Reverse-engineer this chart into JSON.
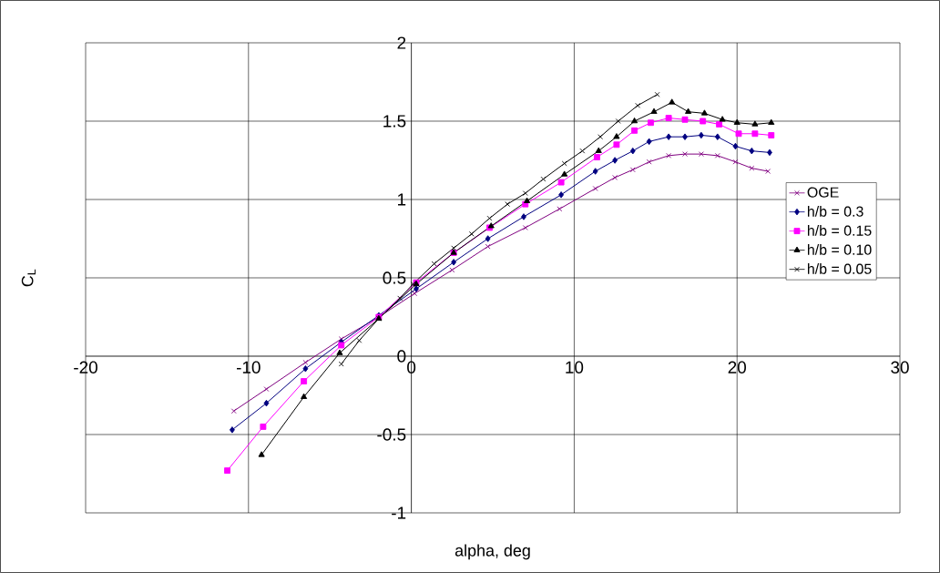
{
  "chart_data": {
    "type": "line",
    "xlabel": "alpha, deg",
    "ylabel": "C$_{L}$",
    "xlim": [
      -20,
      30
    ],
    "ylim": [
      -1,
      2
    ],
    "xticks": [
      -20,
      -10,
      0,
      10,
      20,
      30
    ],
    "yticks": [
      -1,
      -0.5,
      0,
      0.5,
      1,
      1.5,
      2
    ],
    "grid": true,
    "legend": "right",
    "line_style": "solid",
    "series": [
      {
        "name": "OGE",
        "color": "#800080",
        "marker": "cross",
        "x": [
          -10.9,
          -8.9,
          -6.5,
          -4.3,
          -2.0,
          0.2,
          2.5,
          4.7,
          7.0,
          9.1,
          11.3,
          12.5,
          13.6,
          14.6,
          15.8,
          16.8,
          17.8,
          18.8,
          19.9,
          20.9,
          21.9
        ],
        "values": [
          -0.35,
          -0.21,
          -0.04,
          0.11,
          0.25,
          0.4,
          0.55,
          0.7,
          0.82,
          0.94,
          1.07,
          1.14,
          1.19,
          1.24,
          1.28,
          1.29,
          1.29,
          1.28,
          1.24,
          1.2,
          1.18
        ]
      },
      {
        "name": "h/b = 0.3",
        "color": "#000080",
        "marker": "diamond",
        "x": [
          -11.0,
          -8.9,
          -6.5,
          -4.3,
          -2.0,
          0.3,
          2.6,
          4.7,
          6.9,
          9.2,
          11.3,
          12.5,
          13.6,
          14.6,
          15.8,
          16.8,
          17.8,
          18.8,
          19.9,
          20.9,
          22.0
        ],
        "values": [
          -0.47,
          -0.3,
          -0.08,
          0.09,
          0.26,
          0.43,
          0.6,
          0.75,
          0.89,
          1.03,
          1.18,
          1.25,
          1.31,
          1.37,
          1.4,
          1.4,
          1.41,
          1.4,
          1.34,
          1.31,
          1.3
        ]
      },
      {
        "name": "h/b = 0.15",
        "color": "#ff00ff",
        "marker": "square",
        "x": [
          -11.3,
          -9.1,
          -6.6,
          -4.3,
          -2.0,
          0.3,
          2.6,
          4.8,
          7.0,
          9.2,
          11.4,
          12.6,
          13.7,
          14.7,
          15.8,
          16.8,
          17.9,
          18.9,
          20.1,
          21.1,
          22.1
        ],
        "values": [
          -0.73,
          -0.45,
          -0.16,
          0.07,
          0.25,
          0.47,
          0.66,
          0.82,
          0.97,
          1.11,
          1.27,
          1.35,
          1.44,
          1.49,
          1.52,
          1.51,
          1.5,
          1.48,
          1.42,
          1.42,
          1.41
        ]
      },
      {
        "name": "h/b = 0.10",
        "color": "#000000",
        "marker": "triangle",
        "x": [
          -9.2,
          -6.6,
          -4.4,
          -2.0,
          0.3,
          2.6,
          4.9,
          7.1,
          9.4,
          11.5,
          12.6,
          13.7,
          14.9,
          16.0,
          17.0,
          18.0,
          19.1,
          20.0,
          21.1,
          22.1
        ],
        "values": [
          -0.63,
          -0.26,
          0.02,
          0.24,
          0.46,
          0.66,
          0.83,
          0.99,
          1.16,
          1.31,
          1.4,
          1.5,
          1.56,
          1.62,
          1.56,
          1.55,
          1.51,
          1.49,
          1.48,
          1.49
        ]
      },
      {
        "name": "h/b = 0.05",
        "color": "#000000",
        "marker": "cross",
        "x": [
          -4.3,
          -3.2,
          -2.0,
          -0.7,
          0.1,
          1.4,
          2.6,
          3.7,
          4.8,
          5.9,
          7.0,
          8.1,
          9.4,
          10.5,
          11.6,
          12.7,
          13.9,
          15.1
        ],
        "values": [
          -0.05,
          0.1,
          0.24,
          0.37,
          0.46,
          0.59,
          0.69,
          0.78,
          0.88,
          0.97,
          1.04,
          1.13,
          1.23,
          1.31,
          1.4,
          1.5,
          1.6,
          1.67
        ]
      }
    ]
  }
}
